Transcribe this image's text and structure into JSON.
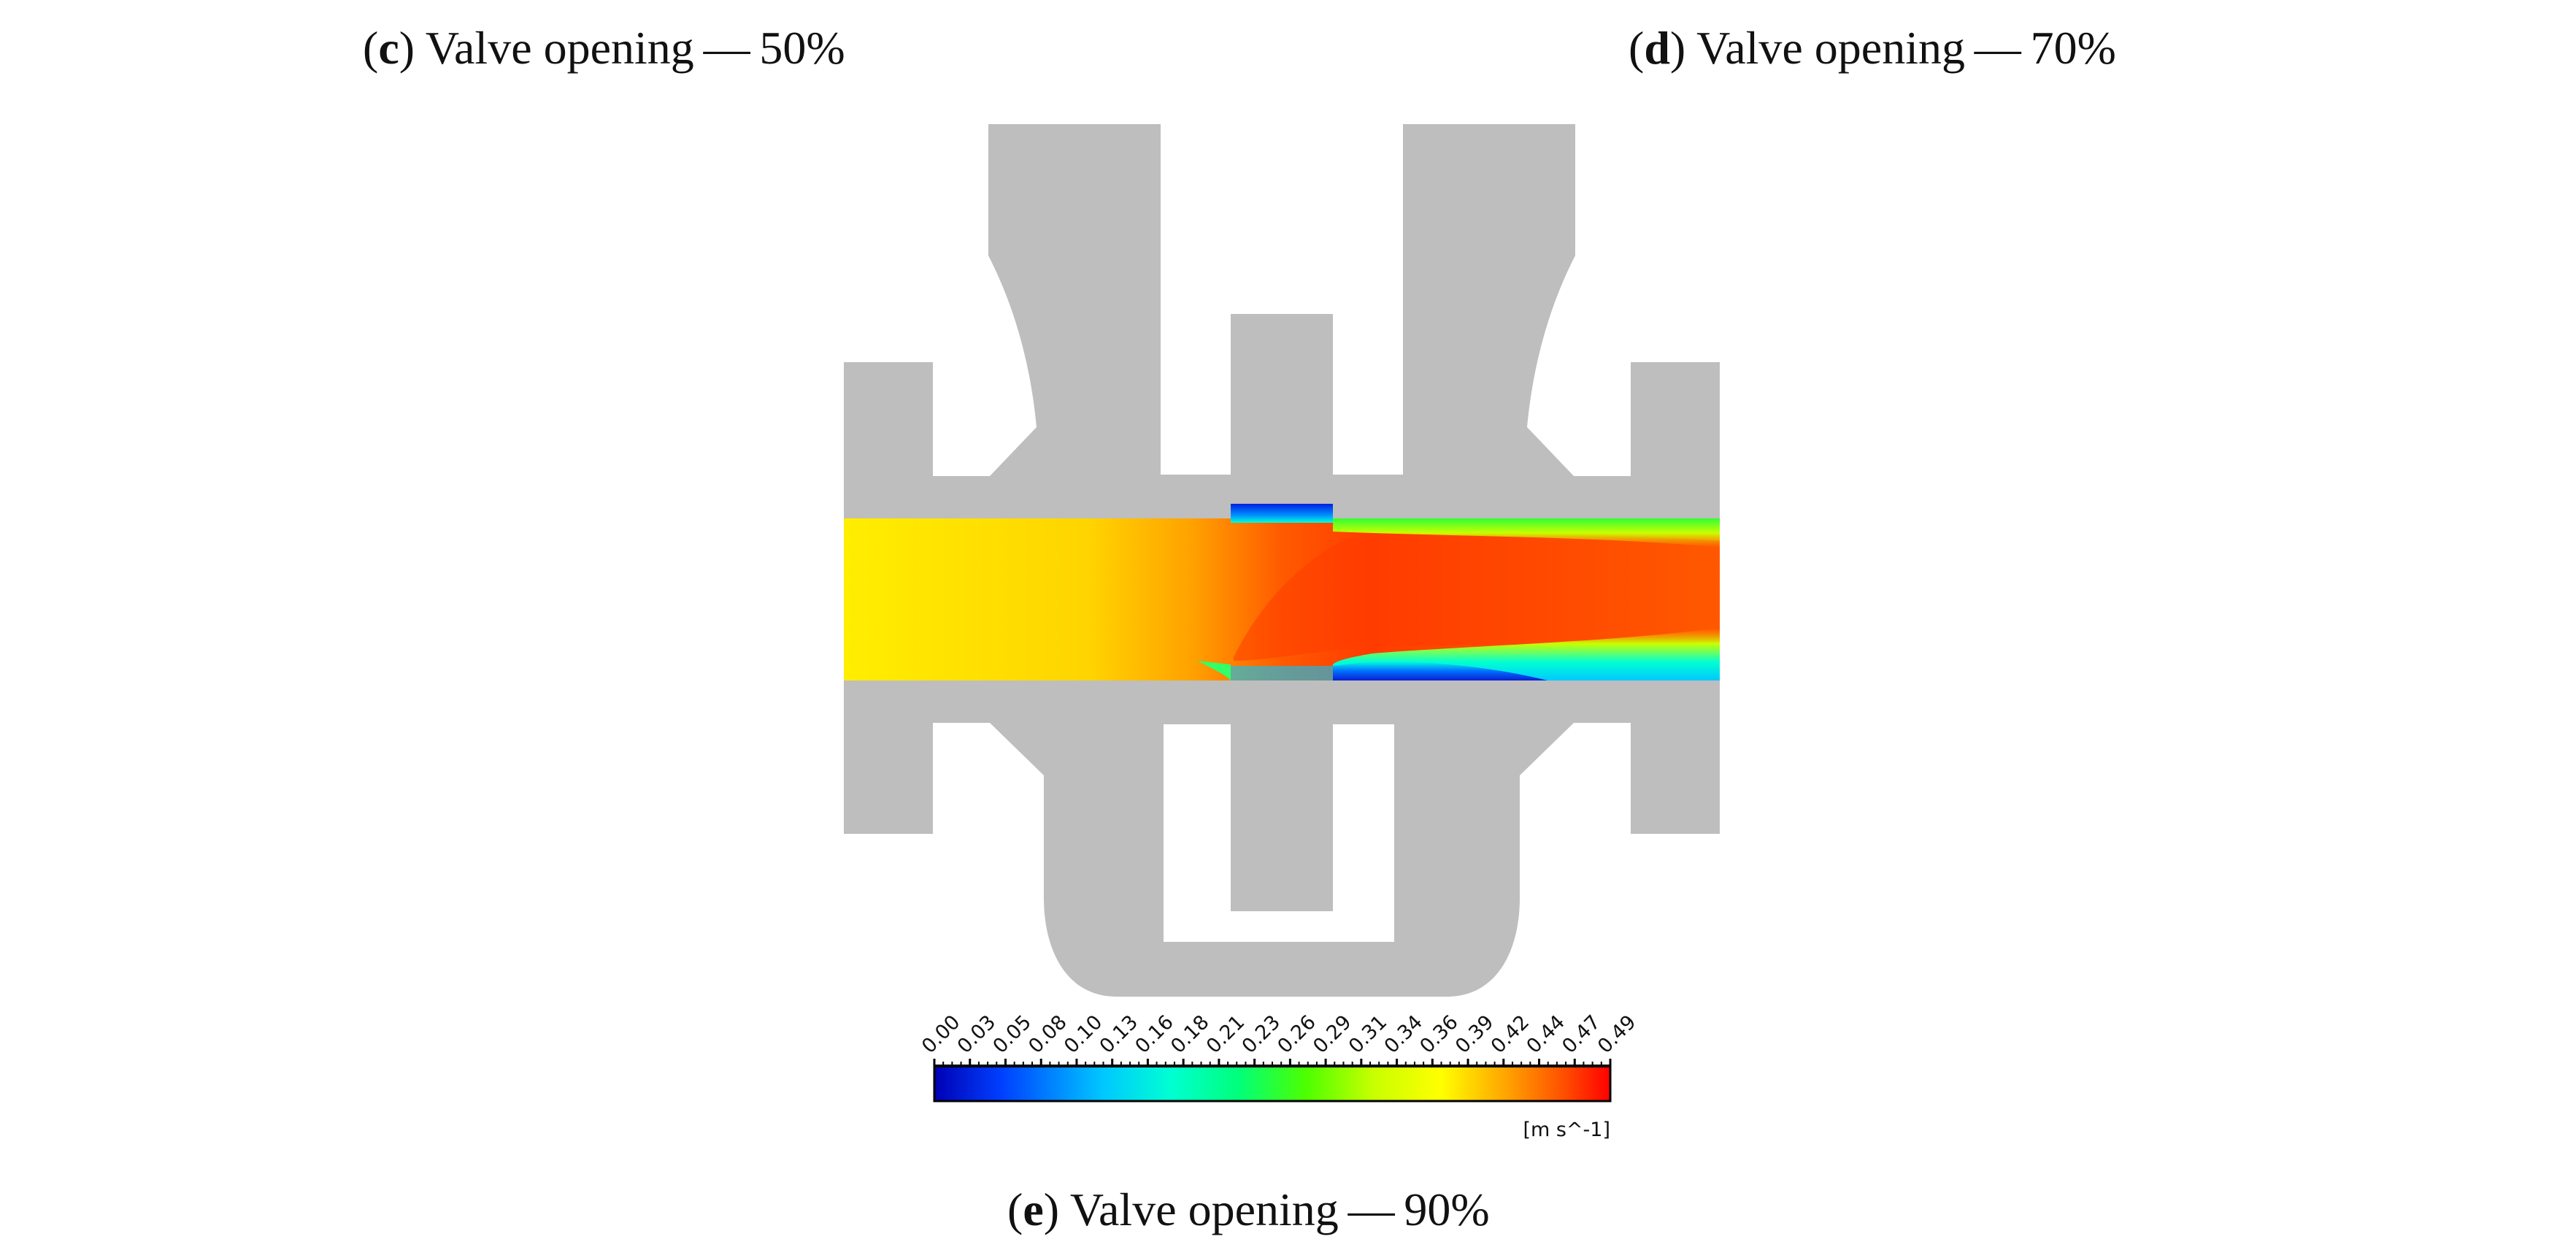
{
  "captions": [
    {
      "letter": "c",
      "text": ") Valve opening — 50%"
    },
    {
      "letter": "d",
      "text": ") Valve opening — 70%"
    },
    {
      "letter": "e",
      "text": ") Valve opening — 90%"
    }
  ],
  "colorbar": {
    "ticks": [
      "0.00",
      "0.03",
      "0.05",
      "0.08",
      "0.10",
      "0.13",
      "0.16",
      "0.18",
      "0.21",
      "0.23",
      "0.26",
      "0.29",
      "0.31",
      "0.34",
      "0.36",
      "0.39",
      "0.42",
      "0.44",
      "0.47",
      "0.49"
    ],
    "unit": "[m s^-1]",
    "colors": [
      "#0000b4",
      "#0040ff",
      "#00c8ff",
      "#00ffd2",
      "#00ff7a",
      "#4dff00",
      "#c8ff00",
      "#ffff00",
      "#ffa000",
      "#ff5000",
      "#ff0000"
    ]
  },
  "colors": {
    "body": "#bebebe",
    "field_inlet": "#ffee00",
    "field_mid": "#ffb000",
    "field_jet": "#ff3c00",
    "field_outlet": "#ff7800",
    "field_wall_green": "#33ff33",
    "field_wall_cyan": "#00ffff",
    "field_recirc": "#0a28dc"
  }
}
